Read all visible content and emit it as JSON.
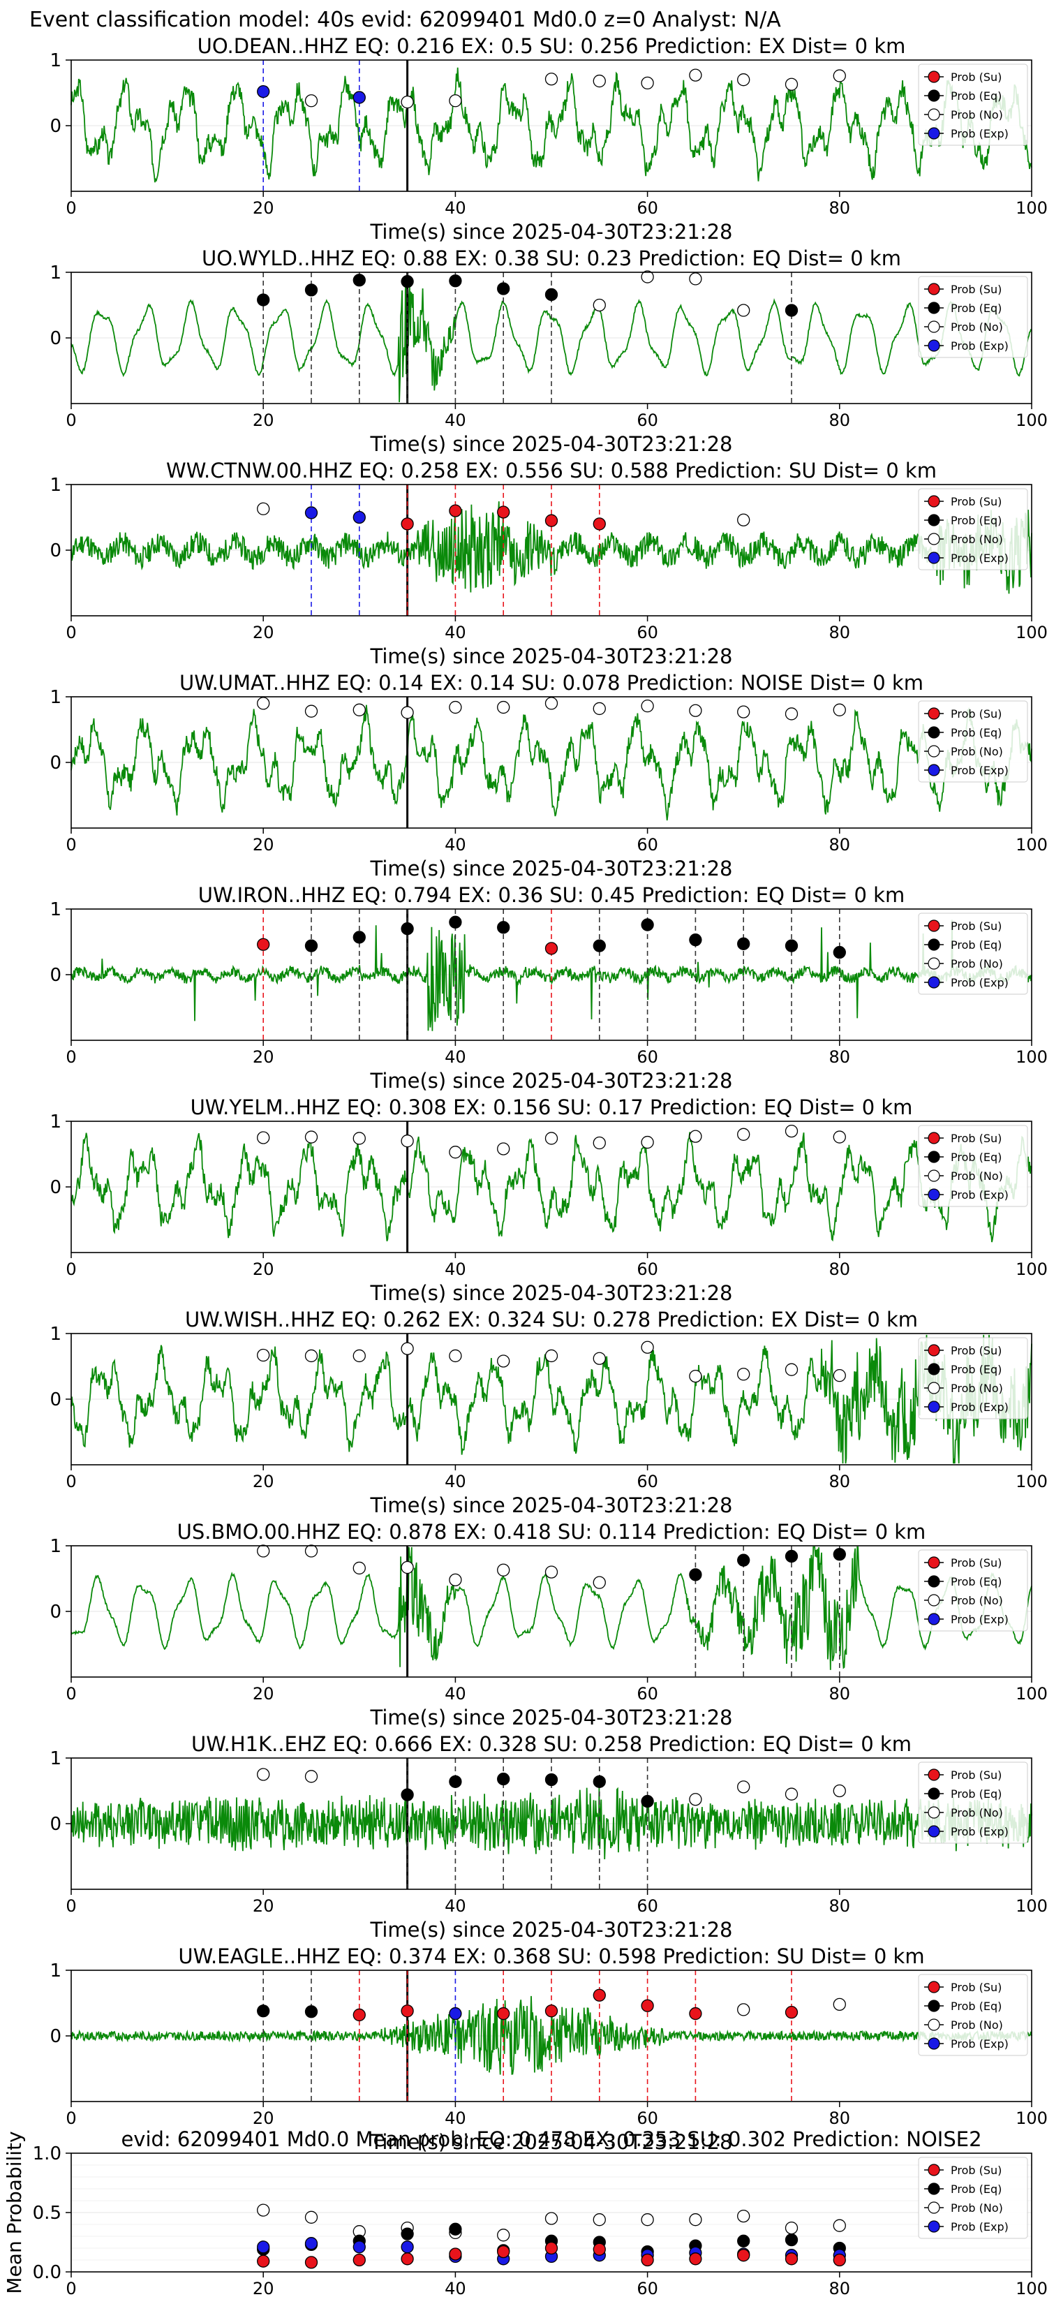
{
  "figure_title": "Event classification model: 40s evid: 62099401 Md0.0 z=0 Analyst: N/A",
  "legend_labels": [
    "Prob (Su)",
    "Prob (Eq)",
    "Prob (No)",
    "Prob (Exp)"
  ],
  "class_colors": {
    "su": "#e8141c",
    "eq": "#000000",
    "no": "#ffffff",
    "exp": "#1a1ae6",
    "waveform": "#0a8a0a"
  },
  "time_axis_label": "Time(s) since 2025-04-30T23:21:28",
  "mean_ylabel": "Mean Probability",
  "chart_data": [
    {
      "type": "line",
      "title": "UO.DEAN..HHZ   EQ: 0.216  EX: 0.5  SU: 0.256   Prediction: EX    Dist= 0 km",
      "xlim": [
        0,
        100
      ],
      "ylim": [
        -1,
        1
      ],
      "yticks": [
        0,
        1
      ],
      "xticks": [
        0,
        20,
        40,
        60,
        80,
        100
      ],
      "xlabel": "Time(s) since 2025-04-30T23:21:28",
      "pick_time": 35,
      "waveform_style": "lowfreq",
      "seed": 3,
      "points": [
        {
          "t": 20,
          "cls": "exp",
          "p": 0.52,
          "line": true
        },
        {
          "t": 25,
          "cls": "no",
          "p": 0.38
        },
        {
          "t": 30,
          "cls": "exp",
          "p": 0.43,
          "line": true
        },
        {
          "t": 35,
          "cls": "no",
          "p": 0.36
        },
        {
          "t": 40,
          "cls": "no",
          "p": 0.38
        },
        {
          "t": 50,
          "cls": "no",
          "p": 0.71
        },
        {
          "t": 55,
          "cls": "no",
          "p": 0.68
        },
        {
          "t": 60,
          "cls": "no",
          "p": 0.65
        },
        {
          "t": 65,
          "cls": "no",
          "p": 0.77
        },
        {
          "t": 70,
          "cls": "no",
          "p": 0.7
        },
        {
          "t": 75,
          "cls": "no",
          "p": 0.63
        },
        {
          "t": 80,
          "cls": "no",
          "p": 0.76
        }
      ]
    },
    {
      "type": "line",
      "title": "UO.WYLD..HHZ   EQ: 0.88  EX: 0.38  SU: 0.23   Prediction: EQ    Dist= 0 km",
      "xlim": [
        0,
        100
      ],
      "ylim": [
        -1,
        1
      ],
      "yticks": [
        0,
        1
      ],
      "xticks": [
        0,
        20,
        40,
        60,
        80,
        100
      ],
      "xlabel": "Time(s) since 2025-04-30T23:21:28",
      "pick_time": 35,
      "waveform_style": "smooth",
      "seed": 7,
      "points": [
        {
          "t": 20,
          "cls": "eq",
          "p": 0.58,
          "line": true
        },
        {
          "t": 25,
          "cls": "eq",
          "p": 0.73,
          "line": true
        },
        {
          "t": 30,
          "cls": "eq",
          "p": 0.88,
          "line": true
        },
        {
          "t": 35,
          "cls": "eq",
          "p": 0.86,
          "line": true
        },
        {
          "t": 40,
          "cls": "eq",
          "p": 0.87,
          "line": true
        },
        {
          "t": 45,
          "cls": "eq",
          "p": 0.75,
          "line": true
        },
        {
          "t": 50,
          "cls": "eq",
          "p": 0.66,
          "line": true
        },
        {
          "t": 55,
          "cls": "no",
          "p": 0.5
        },
        {
          "t": 60,
          "cls": "no",
          "p": 0.93
        },
        {
          "t": 65,
          "cls": "no",
          "p": 0.9
        },
        {
          "t": 70,
          "cls": "no",
          "p": 0.42
        },
        {
          "t": 75,
          "cls": "eq",
          "p": 0.42,
          "line": true
        }
      ]
    },
    {
      "type": "line",
      "title": "WW.CTNW.00.HHZ   EQ: 0.258  EX: 0.556  SU: 0.588   Prediction: SU    Dist= 0 km",
      "xlim": [
        0,
        100
      ],
      "ylim": [
        -1,
        1
      ],
      "yticks": [
        0,
        1
      ],
      "xticks": [
        0,
        20,
        40,
        60,
        80,
        100
      ],
      "xlabel": "Time(s) since 2025-04-30T23:21:28",
      "pick_time": 35,
      "waveform_style": "noisy_burst",
      "seed": 11,
      "points": [
        {
          "t": 20,
          "cls": "no",
          "p": 0.63
        },
        {
          "t": 25,
          "cls": "exp",
          "p": 0.57,
          "line": true
        },
        {
          "t": 30,
          "cls": "exp",
          "p": 0.5,
          "line": true
        },
        {
          "t": 35,
          "cls": "su",
          "p": 0.4,
          "line": true
        },
        {
          "t": 40,
          "cls": "su",
          "p": 0.6,
          "line": true
        },
        {
          "t": 45,
          "cls": "su",
          "p": 0.58,
          "line": true
        },
        {
          "t": 50,
          "cls": "su",
          "p": 0.45,
          "line": true
        },
        {
          "t": 55,
          "cls": "su",
          "p": 0.4,
          "line": true
        },
        {
          "t": 70,
          "cls": "no",
          "p": 0.46
        }
      ]
    },
    {
      "type": "line",
      "title": "UW.UMAT..HHZ   EQ: 0.14  EX: 0.14  SU: 0.078   Prediction: NOISE    Dist= 0 km",
      "xlim": [
        0,
        100
      ],
      "ylim": [
        -1,
        1
      ],
      "yticks": [
        0,
        1
      ],
      "xticks": [
        0,
        20,
        40,
        60,
        80,
        100
      ],
      "xlabel": "Time(s) since 2025-04-30T23:21:28",
      "pick_time": 35,
      "waveform_style": "lowfreq",
      "seed": 17,
      "points": [
        {
          "t": 20,
          "cls": "no",
          "p": 0.9
        },
        {
          "t": 25,
          "cls": "no",
          "p": 0.78
        },
        {
          "t": 30,
          "cls": "no",
          "p": 0.8
        },
        {
          "t": 35,
          "cls": "no",
          "p": 0.76
        },
        {
          "t": 40,
          "cls": "no",
          "p": 0.84
        },
        {
          "t": 45,
          "cls": "no",
          "p": 0.84
        },
        {
          "t": 50,
          "cls": "no",
          "p": 0.9
        },
        {
          "t": 55,
          "cls": "no",
          "p": 0.82
        },
        {
          "t": 60,
          "cls": "no",
          "p": 0.86
        },
        {
          "t": 65,
          "cls": "no",
          "p": 0.79
        },
        {
          "t": 70,
          "cls": "no",
          "p": 0.77
        },
        {
          "t": 75,
          "cls": "no",
          "p": 0.74
        },
        {
          "t": 80,
          "cls": "no",
          "p": 0.8
        }
      ]
    },
    {
      "type": "line",
      "title": "UW.IRON..HHZ   EQ: 0.794  EX: 0.36  SU: 0.45   Prediction: EQ    Dist= 0 km",
      "xlim": [
        0,
        100
      ],
      "ylim": [
        -1,
        1
      ],
      "yticks": [
        0,
        1
      ],
      "xticks": [
        0,
        20,
        40,
        60,
        80,
        100
      ],
      "xlabel": "Time(s) since 2025-04-30T23:21:28",
      "pick_time": 35,
      "waveform_style": "quiet_spikes",
      "seed": 23,
      "points": [
        {
          "t": 20,
          "cls": "su",
          "p": 0.46,
          "line": true
        },
        {
          "t": 25,
          "cls": "eq",
          "p": 0.44,
          "line": true
        },
        {
          "t": 30,
          "cls": "eq",
          "p": 0.57,
          "line": true
        },
        {
          "t": 35,
          "cls": "eq",
          "p": 0.7,
          "line": true
        },
        {
          "t": 40,
          "cls": "eq",
          "p": 0.8,
          "line": true
        },
        {
          "t": 45,
          "cls": "eq",
          "p": 0.72,
          "line": true
        },
        {
          "t": 50,
          "cls": "su",
          "p": 0.4,
          "line": true
        },
        {
          "t": 55,
          "cls": "eq",
          "p": 0.44,
          "line": true
        },
        {
          "t": 60,
          "cls": "eq",
          "p": 0.76,
          "line": true
        },
        {
          "t": 65,
          "cls": "eq",
          "p": 0.53,
          "line": true
        },
        {
          "t": 70,
          "cls": "eq",
          "p": 0.47,
          "line": true
        },
        {
          "t": 75,
          "cls": "eq",
          "p": 0.44,
          "line": true
        },
        {
          "t": 80,
          "cls": "eq",
          "p": 0.34,
          "line": true
        }
      ]
    },
    {
      "type": "line",
      "title": "UW.YELM..HHZ   EQ: 0.308  EX: 0.156  SU: 0.17   Prediction: EQ    Dist= 0 km",
      "xlim": [
        0,
        100
      ],
      "ylim": [
        -1,
        1
      ],
      "yticks": [
        0,
        1
      ],
      "xticks": [
        0,
        20,
        40,
        60,
        80,
        100
      ],
      "xlabel": "Time(s) since 2025-04-30T23:21:28",
      "pick_time": 35,
      "waveform_style": "lowfreq",
      "seed": 29,
      "points": [
        {
          "t": 20,
          "cls": "no",
          "p": 0.75
        },
        {
          "t": 25,
          "cls": "no",
          "p": 0.76
        },
        {
          "t": 30,
          "cls": "no",
          "p": 0.74
        },
        {
          "t": 35,
          "cls": "no",
          "p": 0.7
        },
        {
          "t": 40,
          "cls": "no",
          "p": 0.53
        },
        {
          "t": 45,
          "cls": "no",
          "p": 0.58
        },
        {
          "t": 50,
          "cls": "no",
          "p": 0.74
        },
        {
          "t": 55,
          "cls": "no",
          "p": 0.67
        },
        {
          "t": 60,
          "cls": "no",
          "p": 0.68
        },
        {
          "t": 65,
          "cls": "no",
          "p": 0.77
        },
        {
          "t": 70,
          "cls": "no",
          "p": 0.8
        },
        {
          "t": 75,
          "cls": "no",
          "p": 0.85
        },
        {
          "t": 80,
          "cls": "no",
          "p": 0.76
        }
      ]
    },
    {
      "type": "line",
      "title": "UW.WISH..HHZ   EQ: 0.262  EX: 0.324  SU: 0.278   Prediction: EX    Dist= 0 km",
      "xlim": [
        0,
        100
      ],
      "ylim": [
        -1,
        1
      ],
      "yticks": [
        0,
        1
      ],
      "xticks": [
        0,
        20,
        40,
        60,
        80,
        100
      ],
      "xlabel": "Time(s) since 2025-04-30T23:21:28",
      "pick_time": 35,
      "waveform_style": "lowfreq_late",
      "seed": 31,
      "points": [
        {
          "t": 20,
          "cls": "no",
          "p": 0.67
        },
        {
          "t": 25,
          "cls": "no",
          "p": 0.66
        },
        {
          "t": 30,
          "cls": "no",
          "p": 0.66
        },
        {
          "t": 35,
          "cls": "no",
          "p": 0.77
        },
        {
          "t": 40,
          "cls": "no",
          "p": 0.66
        },
        {
          "t": 45,
          "cls": "no",
          "p": 0.58
        },
        {
          "t": 50,
          "cls": "no",
          "p": 0.66
        },
        {
          "t": 55,
          "cls": "no",
          "p": 0.62
        },
        {
          "t": 60,
          "cls": "no",
          "p": 0.79
        },
        {
          "t": 65,
          "cls": "no",
          "p": 0.35
        },
        {
          "t": 70,
          "cls": "no",
          "p": 0.38
        },
        {
          "t": 75,
          "cls": "no",
          "p": 0.45
        },
        {
          "t": 80,
          "cls": "no",
          "p": 0.36
        }
      ]
    },
    {
      "type": "line",
      "title": "US.BMO.00.HHZ   EQ: 0.878  EX: 0.418  SU: 0.114   Prediction: EQ    Dist= 0 km",
      "xlim": [
        0,
        100
      ],
      "ylim": [
        -1,
        1
      ],
      "yticks": [
        0,
        1
      ],
      "xticks": [
        0,
        20,
        40,
        60,
        80,
        100
      ],
      "xlabel": "Time(s) since 2025-04-30T23:21:28",
      "pick_time": 35,
      "waveform_style": "smooth_late",
      "seed": 37,
      "points": [
        {
          "t": 20,
          "cls": "no",
          "p": 0.92
        },
        {
          "t": 25,
          "cls": "no",
          "p": 0.92
        },
        {
          "t": 30,
          "cls": "no",
          "p": 0.66
        },
        {
          "t": 35,
          "cls": "no",
          "p": 0.67
        },
        {
          "t": 40,
          "cls": "no",
          "p": 0.48
        },
        {
          "t": 45,
          "cls": "no",
          "p": 0.63
        },
        {
          "t": 50,
          "cls": "no",
          "p": 0.6
        },
        {
          "t": 55,
          "cls": "no",
          "p": 0.44
        },
        {
          "t": 65,
          "cls": "eq",
          "p": 0.56,
          "line": true
        },
        {
          "t": 70,
          "cls": "eq",
          "p": 0.78,
          "line": true
        },
        {
          "t": 75,
          "cls": "eq",
          "p": 0.84,
          "line": true
        },
        {
          "t": 80,
          "cls": "eq",
          "p": 0.87,
          "line": true
        }
      ]
    },
    {
      "type": "line",
      "title": "UW.H1K..EHZ   EQ: 0.666  EX: 0.328  SU: 0.258   Prediction: EQ    Dist= 0 km",
      "xlim": [
        0,
        100
      ],
      "ylim": [
        -1,
        1
      ],
      "yticks": [
        0,
        1
      ],
      "xticks": [
        0,
        20,
        40,
        60,
        80,
        100
      ],
      "xlabel": "Time(s) since 2025-04-30T23:21:28",
      "pick_time": 35,
      "waveform_style": "dense_noise",
      "seed": 41,
      "points": [
        {
          "t": 20,
          "cls": "no",
          "p": 0.75
        },
        {
          "t": 25,
          "cls": "no",
          "p": 0.72
        },
        {
          "t": 35,
          "cls": "eq",
          "p": 0.44,
          "line": true
        },
        {
          "t": 40,
          "cls": "eq",
          "p": 0.64,
          "line": true
        },
        {
          "t": 45,
          "cls": "eq",
          "p": 0.68,
          "line": true
        },
        {
          "t": 50,
          "cls": "eq",
          "p": 0.67,
          "line": true
        },
        {
          "t": 55,
          "cls": "eq",
          "p": 0.64,
          "line": true
        },
        {
          "t": 60,
          "cls": "eq",
          "p": 0.34,
          "line": true
        },
        {
          "t": 65,
          "cls": "no",
          "p": 0.37
        },
        {
          "t": 70,
          "cls": "no",
          "p": 0.56
        },
        {
          "t": 75,
          "cls": "no",
          "p": 0.45
        },
        {
          "t": 80,
          "cls": "no",
          "p": 0.5
        }
      ]
    },
    {
      "type": "line",
      "title": "UW.EAGLE..HHZ   EQ: 0.374  EX: 0.368  SU: 0.598   Prediction: SU    Dist= 0 km",
      "xlim": [
        0,
        100
      ],
      "ylim": [
        -1,
        1
      ],
      "yticks": [
        0,
        1
      ],
      "xticks": [
        0,
        20,
        40,
        60,
        80,
        100
      ],
      "xlabel": "Time(s) since 2025-04-30T23:21:28",
      "pick_time": 35,
      "waveform_style": "burst_mid",
      "seed": 43,
      "points": [
        {
          "t": 20,
          "cls": "eq",
          "p": 0.38,
          "line": true
        },
        {
          "t": 25,
          "cls": "eq",
          "p": 0.37,
          "line": true
        },
        {
          "t": 30,
          "cls": "su",
          "p": 0.32,
          "line": true
        },
        {
          "t": 35,
          "cls": "su",
          "p": 0.38,
          "line": true
        },
        {
          "t": 40,
          "cls": "exp",
          "p": 0.34,
          "line": true
        },
        {
          "t": 45,
          "cls": "su",
          "p": 0.34,
          "line": true
        },
        {
          "t": 50,
          "cls": "su",
          "p": 0.38,
          "line": true
        },
        {
          "t": 55,
          "cls": "su",
          "p": 0.62,
          "line": true
        },
        {
          "t": 60,
          "cls": "su",
          "p": 0.46,
          "line": true
        },
        {
          "t": 65,
          "cls": "su",
          "p": 0.34,
          "line": true
        },
        {
          "t": 70,
          "cls": "no",
          "p": 0.4
        },
        {
          "t": 75,
          "cls": "su",
          "p": 0.36,
          "line": true
        },
        {
          "t": 80,
          "cls": "no",
          "p": 0.48
        }
      ]
    },
    {
      "type": "scatter",
      "title": "evid: 62099401  Md0.0   Mean prob:   EQ: 0.478  EX: 0.353  SU: 0.302   Prediction: NOISE2",
      "xlim": [
        0,
        100
      ],
      "ylim": [
        0,
        1
      ],
      "yticks": [
        0.0,
        0.5,
        1.0
      ],
      "xticks": [
        0,
        20,
        40,
        60,
        80,
        100
      ],
      "ylabel": "Mean Probability",
      "grid": true,
      "legend": "upper right",
      "x": [
        20,
        25,
        30,
        35,
        40,
        45,
        50,
        55,
        60,
        65,
        70,
        75,
        80
      ],
      "series": [
        {
          "name": "Prob (Su)",
          "cls": "su",
          "values": [
            0.09,
            0.08,
            0.1,
            0.11,
            0.15,
            0.17,
            0.2,
            0.19,
            0.1,
            0.11,
            0.14,
            0.11,
            0.1
          ]
        },
        {
          "name": "Prob (Eq)",
          "cls": "eq",
          "values": [
            0.19,
            0.23,
            0.26,
            0.32,
            0.36,
            0.18,
            0.26,
            0.25,
            0.17,
            0.22,
            0.26,
            0.27,
            0.2
          ]
        },
        {
          "name": "Prob (No)",
          "cls": "no",
          "values": [
            0.52,
            0.46,
            0.34,
            0.37,
            0.33,
            0.31,
            0.45,
            0.44,
            0.44,
            0.44,
            0.47,
            0.37,
            0.39
          ]
        },
        {
          "name": "Prob (Exp)",
          "cls": "exp",
          "values": [
            0.21,
            0.24,
            0.21,
            0.21,
            0.13,
            0.11,
            0.13,
            0.14,
            0.14,
            0.16,
            0.15,
            0.14,
            0.14
          ]
        }
      ]
    }
  ]
}
